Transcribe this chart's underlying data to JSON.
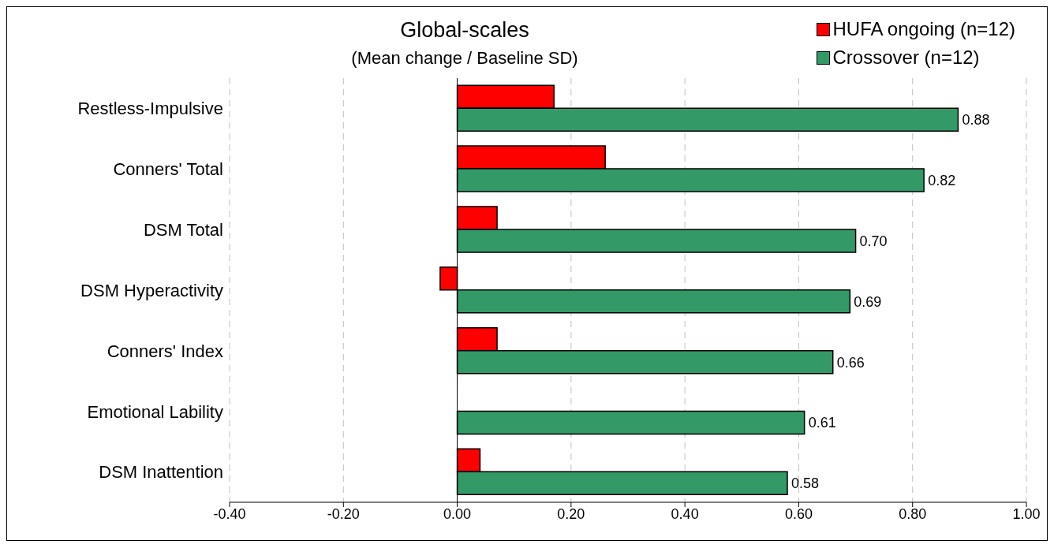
{
  "chart_data": {
    "type": "bar",
    "orientation": "horizontal",
    "title": "Global-scales",
    "subtitle": "(Mean change / Baseline SD)",
    "categories": [
      "Restless-Impulsive",
      "Conners' Total",
      "DSM Total",
      "DSM Hyperactivity",
      "Conners' Index",
      "Emotional Lability",
      "DSM Inattention"
    ],
    "series": [
      {
        "name": "HUFA ongoing (n=12)",
        "color": "#ff0000",
        "values": [
          0.17,
          0.26,
          0.07,
          -0.03,
          0.07,
          null,
          0.04
        ]
      },
      {
        "name": "Crossover (n=12)",
        "color": "#339966",
        "values": [
          0.88,
          0.82,
          0.7,
          0.69,
          0.66,
          0.61,
          0.58
        ],
        "value_labels": [
          "0.88",
          "0.82",
          "0.70",
          "0.69",
          "0.66",
          "0.61",
          "0.58"
        ]
      }
    ],
    "xlim": [
      -0.4,
      1.0
    ],
    "xticks": [
      {
        "value": -0.4,
        "label": "-0.40"
      },
      {
        "value": -0.2,
        "label": "-0.20"
      },
      {
        "value": 0,
        "label": "0.00"
      },
      {
        "value": 0.2,
        "label": "0.20"
      },
      {
        "value": 0.4,
        "label": "0.40"
      },
      {
        "value": 0.6,
        "label": "0.60"
      },
      {
        "value": 0.8,
        "label": "0.80"
      },
      {
        "value": 1.0,
        "label": "1.00"
      }
    ],
    "grid": "x",
    "legend": "top right"
  }
}
